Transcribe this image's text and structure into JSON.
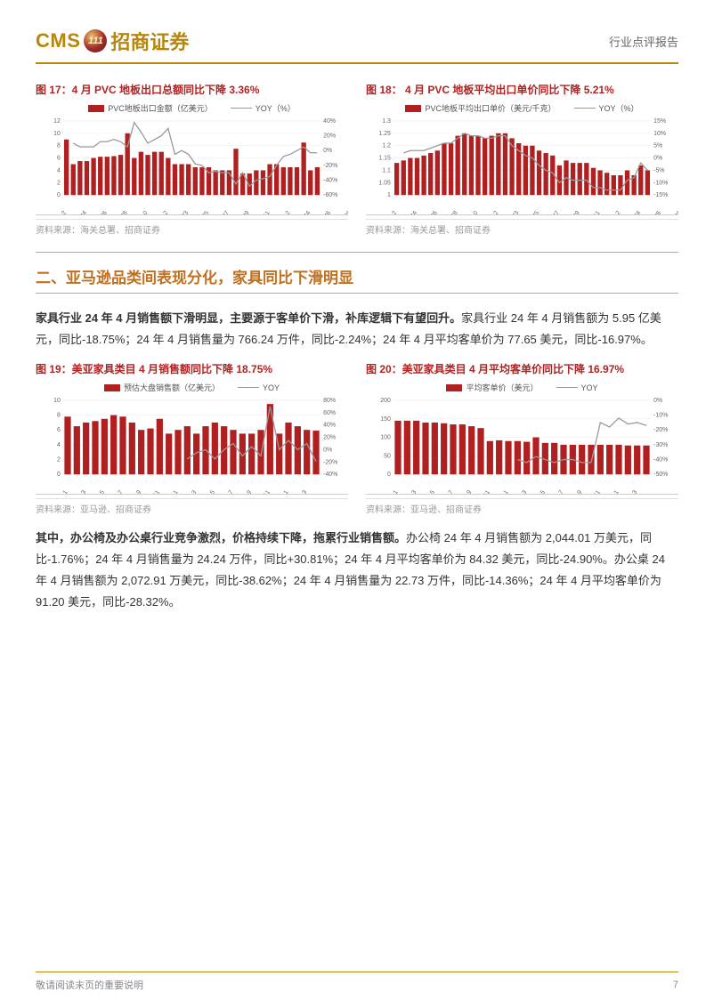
{
  "header": {
    "logo_cms": "CMS",
    "logo_num": "111",
    "logo_cn": "招商证券",
    "report_type": "行业点评报告"
  },
  "chart17": {
    "title": "图 17：4 月 PVC 地板出口总额同比下降 3.36%",
    "type": "bar+line",
    "legend_bar": "PVC地板出口金额（亿美元）",
    "legend_line": "YOY（%）",
    "bar_color": "#b02020",
    "line_color": "#999999",
    "bg_color": "#ffffff",
    "y_left": {
      "min": 0,
      "max": 12,
      "step": 2
    },
    "y_right": {
      "min": -60,
      "max": 40,
      "step": 20
    },
    "categories": [
      "2021M1~2",
      "2021M4",
      "2021M6",
      "2021M8",
      "2021M10",
      "2021M12",
      "2022M3",
      "2022M5",
      "2022M7",
      "2022M9",
      "2022M11",
      "2023M1~2",
      "2023M4",
      "2023M6",
      "2023M8",
      "2023M10",
      "2023M12",
      "2024M3"
    ],
    "bars": [
      9,
      5,
      5.5,
      5.5,
      6,
      6.2,
      6.2,
      6.3,
      6.5,
      10,
      6,
      7,
      6.5,
      7,
      7,
      6,
      5,
      5,
      5,
      4.5,
      4.5,
      4.5,
      4,
      4,
      4,
      7.5,
      3.5,
      3.5,
      4,
      4,
      5,
      5,
      4.5,
      4.5,
      4.5,
      8.5,
      4,
      4.5
    ],
    "line": [
      null,
      10,
      5,
      5,
      5,
      12,
      12,
      15,
      12,
      5,
      38,
      25,
      10,
      15,
      20,
      30,
      -5,
      0,
      -5,
      -18,
      -20,
      -30,
      -28,
      -30,
      -30,
      -45,
      -30,
      -48,
      -40,
      -38,
      -35,
      -20,
      -8,
      -5,
      0,
      5,
      -3,
      -3
    ],
    "source": "资料来源：海关总署、招商证券"
  },
  "chart18": {
    "title": "图 18：  4 月 PVC 地板平均出口单价同比下降 5.21%",
    "type": "bar+line",
    "legend_bar": "PVC地板平均出口单价（美元/千克）",
    "legend_line": "YOY（%）",
    "bar_color": "#b02020",
    "line_color": "#999999",
    "y_left": {
      "min": 1.0,
      "max": 1.3,
      "step": 0.05
    },
    "y_right": {
      "min": -15,
      "max": 15,
      "step": 5
    },
    "categories": [
      "2021M1~2",
      "2021M4",
      "2021M6",
      "2021M8",
      "2021M10",
      "2021M12",
      "2022M3",
      "2022M5",
      "2022M7",
      "2022M9",
      "2022M11",
      "2023M1~2",
      "2023M4",
      "2023M6",
      "2023M8",
      "2023M10",
      "2023M12",
      "2024M3"
    ],
    "bars": [
      1.13,
      1.14,
      1.15,
      1.15,
      1.16,
      1.17,
      1.18,
      1.21,
      1.21,
      1.24,
      1.25,
      1.24,
      1.24,
      1.23,
      1.24,
      1.25,
      1.25,
      1.23,
      1.21,
      1.2,
      1.2,
      1.18,
      1.17,
      1.16,
      1.12,
      1.14,
      1.13,
      1.13,
      1.13,
      1.11,
      1.1,
      1.09,
      1.08,
      1.08,
      1.1,
      1.08,
      1.12,
      1.1
    ],
    "line": [
      null,
      2,
      3,
      3,
      3,
      4,
      5,
      6,
      6,
      8,
      10,
      9,
      9,
      8,
      8,
      9,
      9,
      5,
      3,
      1,
      0,
      -3,
      -5,
      -6,
      -10,
      -8,
      -9,
      -9,
      -9,
      -12,
      -12,
      -13,
      -13,
      -13,
      -9,
      -8,
      -2,
      -5
    ],
    "source": "资料来源：海关总署、招商证券"
  },
  "section2": {
    "heading": "二、亚马逊品类间表现分化，家具同比下滑明显",
    "para1_lead": "家具行业 24 年 4 月销售额下滑明显，主要源于客单价下滑，补库逻辑下有望回升。",
    "para1_rest": "家具行业 24 年 4 月销售额为 5.95 亿美元，同比-18.75%；24 年 4 月销售量为 766.24 万件，同比-2.24%；24 年 4 月平均客单价为 77.65 美元，同比-16.97%。"
  },
  "chart19": {
    "title": "图 19：美亚家具类目 4 月销售额同比下降 18.75%",
    "type": "bar+line",
    "legend_bar": "预估大盘销售额（亿美元）",
    "legend_line": "YOY",
    "bar_color": "#b02020",
    "line_color": "#999999",
    "y_left": {
      "min": 0,
      "max": 10,
      "step": 2
    },
    "y_right": {
      "min": -40,
      "max": 80,
      "step": 20
    },
    "categories": [
      "2022-1",
      "2022-3",
      "2022-5",
      "2022-7",
      "2022-9",
      "2022-11",
      "2023-1",
      "2023-3",
      "2023-5",
      "2023-7",
      "2023-9",
      "2023-11",
      "2024-1",
      "2024-3"
    ],
    "bars": [
      7.8,
      6.5,
      7,
      7.2,
      7.5,
      8,
      7.8,
      7,
      6,
      6.2,
      7.5,
      5.5,
      6,
      6.5,
      5.5,
      6.5,
      7,
      6.5,
      6,
      5.5,
      5.5,
      6,
      9.5,
      5.5,
      7,
      6.5,
      6,
      5.9
    ],
    "line": [
      null,
      null,
      null,
      null,
      null,
      null,
      null,
      null,
      null,
      null,
      null,
      null,
      null,
      -15,
      -5,
      0,
      -15,
      0,
      10,
      -10,
      5,
      -10,
      70,
      0,
      15,
      0,
      10,
      -19
    ],
    "source": "资料来源：亚马逊、招商证券"
  },
  "chart20": {
    "title": "图 20：美亚家具类目 4 月平均客单价同比下降 16.97%",
    "type": "bar+line",
    "legend_bar": "平均客单价（美元）",
    "legend_line": "YOY",
    "bar_color": "#b02020",
    "line_color": "#999999",
    "y_left": {
      "min": 0,
      "max": 200,
      "step": 50
    },
    "y_right": {
      "min": -50,
      "max": 0,
      "step": 10
    },
    "categories": [
      "2022-1",
      "2022-3",
      "2022-5",
      "2022-7",
      "2022-9",
      "2022-11",
      "2023-1",
      "2023-3",
      "2023-5",
      "2023-7",
      "2023-9",
      "2023-11",
      "2024-1",
      "2024-3"
    ],
    "bars": [
      145,
      145,
      145,
      140,
      140,
      138,
      135,
      135,
      130,
      125,
      90,
      92,
      90,
      90,
      88,
      100,
      85,
      85,
      80,
      80,
      80,
      80,
      80,
      80,
      80,
      78,
      78,
      78
    ],
    "line": [
      null,
      null,
      null,
      null,
      null,
      null,
      null,
      null,
      null,
      null,
      null,
      null,
      null,
      -40,
      -42,
      -38,
      -40,
      -42,
      -40,
      -40,
      -42,
      -42,
      -15,
      -18,
      -12,
      -16,
      -15,
      -17
    ],
    "source": "资料来源：亚马逊、招商证券"
  },
  "para2": {
    "lead": "其中，办公椅及办公桌行业竞争激烈，价格持续下降，拖累行业销售额。",
    "rest": "办公椅 24 年 4 月销售额为 2,044.01 万美元，同比-1.76%；24 年 4 月销售量为 24.24 万件，同比+30.81%；24 年 4 月平均客单价为 84.32 美元，同比-24.90%。办公桌 24 年 4 月销售额为 2,072.91 万美元，同比-38.62%；24 年 4 月销售量为 22.73 万件，同比-14.36%；24 年 4 月平均客单价为 91.20 美元，同比-28.32%。"
  },
  "footer": {
    "disclaimer": "敬请阅读末页的重要说明",
    "page": "7"
  },
  "colors": {
    "brand": "#b8860b",
    "accent_red": "#b02020",
    "heading_orange": "#c07020"
  }
}
